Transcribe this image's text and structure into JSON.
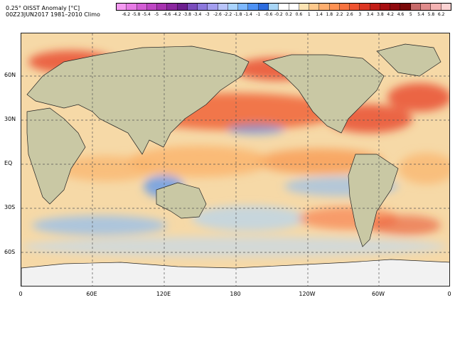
{
  "header": {
    "title_line1": "0.25° OISST Anomaly [°C]",
    "title_line2": "00Z23JUN2017 1981–2010 Climo"
  },
  "colorbar": {
    "labels": [
      "-6.2",
      "-5.8",
      "-5.4",
      "-5",
      "-4.6",
      "-4.2",
      "-3.8",
      "-3.4",
      "-3",
      "-2.6",
      "-2.2",
      "-1.8",
      "-1.4",
      "-1",
      "-0.6",
      "-0.2",
      "0.2",
      "0.6",
      "1",
      "1.4",
      "1.8",
      "2.2",
      "2.6",
      "3",
      "3.4",
      "3.8",
      "4.2",
      "4.6",
      "5",
      "5.4",
      "5.8",
      "6.2"
    ],
    "colors": [
      "#f59af2",
      "#e77be6",
      "#d35ed5",
      "#be47c4",
      "#a733b0",
      "#8b279f",
      "#6c1f8f",
      "#7a4dbd",
      "#8c78dd",
      "#a39ef0",
      "#b8c4fa",
      "#a9d4ff",
      "#7db8ff",
      "#4e92f5",
      "#2c6cdf",
      "#a8d6f7",
      "#ffffff",
      "#ffffff",
      "#fde4b3",
      "#ffc98c",
      "#ffae6e",
      "#ff9152",
      "#f8733f",
      "#ef5330",
      "#dd3623",
      "#c31d17",
      "#a70f12",
      "#8f0a0e",
      "#7a0a0a",
      "#c76a6a",
      "#e08c8c",
      "#f4b3b3",
      "#fcd3d3"
    ]
  },
  "map": {
    "land_color": "#c9c8a4",
    "ice_color": "#f2f2f2",
    "lat_labels": [
      "60N",
      "30N",
      "EQ",
      "30S",
      "60S"
    ],
    "lon_labels": [
      "0",
      "60E",
      "120E",
      "180",
      "120W",
      "60W",
      "0"
    ]
  }
}
